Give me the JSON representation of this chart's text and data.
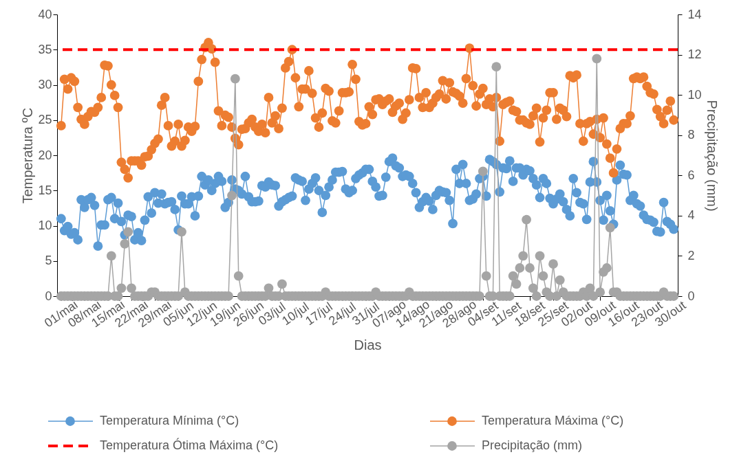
{
  "chart_data": {
    "type": "line",
    "xlabel": "Dias",
    "ylabel": "Temperatura ºC",
    "y2label": "Precipitação (mm)",
    "categories": [
      "01/mai",
      null,
      null,
      null,
      null,
      null,
      null,
      "08/mai",
      null,
      null,
      null,
      null,
      null,
      null,
      "15/mai",
      null,
      null,
      null,
      null,
      null,
      null,
      "22/mai",
      null,
      null,
      null,
      null,
      null,
      null,
      "29/mai",
      null,
      null,
      null,
      null,
      null,
      null,
      "05/jun",
      null,
      null,
      null,
      null,
      null,
      null,
      "12/jun",
      null,
      null,
      null,
      null,
      null,
      null,
      "19/jun",
      null,
      null,
      null,
      null,
      null,
      null,
      "26/jun",
      null,
      null,
      null,
      null,
      null,
      null,
      "03/jul",
      null,
      null,
      null,
      null,
      null,
      null,
      "10/jul",
      null,
      null,
      null,
      null,
      null,
      null,
      "17/jul",
      null,
      null,
      null,
      null,
      null,
      null,
      "24/jul",
      null,
      null,
      null,
      null,
      null,
      null,
      "31/jul",
      null,
      null,
      null,
      null,
      null,
      null,
      "07/ago",
      null,
      null,
      null,
      null,
      null,
      null,
      "14/ago",
      null,
      null,
      null,
      null,
      null,
      null,
      "21/ago",
      null,
      null,
      null,
      null,
      null,
      null,
      "28/ago",
      null,
      null,
      null,
      null,
      null,
      null,
      "04/set",
      null,
      null,
      null,
      null,
      null,
      null,
      "11/set",
      null,
      null,
      null,
      null,
      null,
      null,
      "18/set",
      null,
      null,
      null,
      null,
      null,
      null,
      "25/set",
      null,
      null,
      null,
      null,
      null,
      null,
      "02/out",
      null,
      null,
      null,
      null,
      null,
      null,
      "09/out",
      null,
      null,
      null,
      null,
      null,
      null,
      "16/out",
      null,
      null,
      null,
      null,
      null,
      null,
      "23/out",
      null,
      null,
      null,
      null,
      null,
      null,
      "30/out",
      null
    ],
    "series": [
      {
        "name": "Temperatura Mínima (°C)",
        "color": "#5b9bd5",
        "values": [
          11,
          9.3,
          9.9,
          8.8,
          9,
          8,
          13.7,
          12.6,
          13.7,
          14,
          12.9,
          7.1,
          10.1,
          10.1,
          13.7,
          14,
          11,
          13.2,
          10.6,
          8.7,
          11.5,
          11.3,
          8,
          9,
          7.9,
          10.8,
          14.1,
          11.8,
          14.7,
          13.2,
          14.5,
          13.1,
          13.3,
          13.4,
          12.3,
          9.4,
          14.2,
          13.1,
          13.1,
          14.1,
          11.4,
          14.2,
          17,
          15.8,
          16.5,
          15,
          16,
          17,
          16.3,
          12.6,
          13.3,
          16.5,
          15.2,
          15,
          14.5,
          17,
          14.1,
          13.4,
          13.4,
          13.5,
          15.7,
          15.5,
          16.2,
          15.8,
          15.7,
          12.8,
          13.4,
          13.7,
          14,
          14.2,
          16.8,
          16.5,
          16.3,
          13.6,
          15.2,
          16,
          16.8,
          15,
          11.9,
          14.3,
          15.5,
          16.5,
          17.6,
          17.6,
          17.7,
          15.2,
          14.7,
          15,
          16.7,
          17.2,
          17.5,
          18,
          18,
          16.3,
          15.5,
          14.2,
          14.3,
          16.9,
          19.1,
          19.6,
          18.5,
          18.2,
          17,
          17.2,
          17,
          16,
          14.7,
          12.6,
          13.4,
          14,
          13.5,
          12.3,
          14.3,
          15,
          14.8,
          14.7,
          13.6,
          10.3,
          18,
          16,
          18.7,
          16,
          13.6,
          13.8,
          14.5,
          16.7,
          17,
          14.2,
          19.4,
          19.1,
          18.7,
          14.8,
          18.2,
          18.1,
          19.2,
          16.3,
          18.2,
          18.2,
          17.2,
          18,
          17.8,
          16.7,
          15.8,
          14,
          16.7,
          16,
          13.9,
          13.1,
          13.8,
          14.5,
          13.4,
          12.3,
          11.4,
          16.7,
          14.7,
          13.3,
          13.1,
          10.9,
          16.2,
          19.1,
          16.2,
          13.6,
          10.8,
          14.3,
          12.1,
          10.2,
          16.5,
          18.6,
          17.3,
          17.2,
          13.6,
          14.3,
          13.1,
          12.8,
          11.5,
          10.9,
          10.8,
          10.5,
          9.2,
          9.1,
          13.3,
          10.6,
          10.2,
          9.5
        ]
      },
      {
        "name": "Temperatura Máxima (°C)",
        "color": "#ed7d31",
        "values": [
          24.2,
          30.8,
          29.4,
          31,
          30.5,
          26.8,
          25.1,
          24.4,
          25.5,
          26.2,
          26.1,
          26.8,
          28.2,
          32.8,
          32.7,
          30,
          28.5,
          26.8,
          19,
          18,
          16.8,
          19.2,
          19.2,
          19.2,
          18.6,
          19.8,
          19.9,
          20.8,
          21.7,
          22.3,
          27.1,
          28.2,
          24.2,
          21.3,
          22,
          24.4,
          21.3,
          22.1,
          24,
          23.4,
          24.1,
          30.5,
          33.6,
          35.3,
          36,
          35.1,
          33.2,
          26.3,
          24.2,
          25.7,
          25.4,
          24,
          22.4,
          21.5,
          23.7,
          23.8,
          24.6,
          25.1,
          24,
          23.4,
          24.4,
          23.2,
          28.2,
          24.6,
          25.6,
          23.8,
          26.7,
          32.4,
          33.3,
          35,
          31,
          26.9,
          29.4,
          29.4,
          32,
          28.8,
          25.3,
          24,
          26,
          29.5,
          29.1,
          24.9,
          24.6,
          26.3,
          28.9,
          28.9,
          29,
          32.9,
          30.8,
          24.8,
          24.3,
          24.5,
          26.9,
          25.8,
          27.9,
          28,
          27.2,
          27.7,
          28,
          26.1,
          27,
          27.4,
          25.1,
          26,
          27.9,
          32.4,
          32.3,
          28.2,
          26.8,
          28.9,
          26.8,
          27.4,
          28.2,
          28.7,
          30.6,
          28,
          30.3,
          29,
          28.8,
          28.4,
          27.4,
          30.9,
          35.2,
          29.9,
          27,
          28.7,
          29.5,
          27.2,
          28,
          26.9,
          28.2,
          22,
          27.2,
          27.5,
          27.7,
          26.4,
          26.2,
          25,
          25,
          24.6,
          24.4,
          25.6,
          26.7,
          21.9,
          25.3,
          26.4,
          28.9,
          28.9,
          25.1,
          26.7,
          26.4,
          25.5,
          31.3,
          31,
          31.4,
          24.5,
          22,
          24.5,
          24.8,
          23,
          25.1,
          22.5,
          25.3,
          21.6,
          19.6,
          17.5,
          20.9,
          23.8,
          24.5,
          24.5,
          25.6,
          30.9,
          31.1,
          30.9,
          31.1,
          29.8,
          28.9,
          28.7,
          26.5,
          25.5,
          24.5,
          26.4,
          27.7,
          25
        ]
      },
      {
        "name": "Precipitação  (mm)",
        "color": "#a5a5a5",
        "axis": "y2",
        "values": [
          0,
          0,
          0,
          0,
          0,
          0,
          0,
          0,
          0,
          0,
          0,
          0,
          0,
          0,
          0,
          2,
          0,
          0,
          0.4,
          2.6,
          3.2,
          0.4,
          0,
          0,
          0,
          0,
          0,
          0.2,
          0.2,
          0,
          0,
          0,
          0,
          0,
          0,
          0,
          3.2,
          0.2,
          0,
          0,
          0,
          0,
          0,
          0,
          0,
          0,
          0,
          0,
          0,
          0,
          0,
          5,
          10.8,
          1,
          0,
          0,
          0,
          0,
          0,
          0,
          0,
          0,
          0.4,
          0,
          0,
          0,
          0.6,
          0,
          0,
          0,
          0,
          0,
          0,
          0,
          0,
          0,
          0,
          0,
          0,
          0.2,
          0,
          0,
          0,
          0,
          0,
          0,
          0,
          0,
          0,
          0,
          0,
          0,
          0,
          0,
          0.2,
          0,
          0,
          0,
          0,
          0,
          0,
          0,
          0,
          0,
          0.2,
          0,
          0,
          0,
          0,
          0,
          0,
          0,
          0,
          0,
          0,
          0,
          0,
          0,
          0,
          0,
          0,
          0,
          0,
          0,
          0,
          0,
          6.2,
          1,
          0,
          0,
          11.4,
          0,
          0,
          0,
          0,
          1,
          0.6,
          1.4,
          2,
          3.8,
          1.4,
          0.4,
          0,
          2,
          1,
          0.2,
          0,
          1.6,
          0,
          0.8,
          0.2,
          0,
          0,
          0,
          0,
          0,
          0.2,
          0,
          0.4,
          0,
          11.8,
          0.2,
          1.2,
          1.4,
          3.4,
          0.2,
          0.2,
          0,
          0,
          0,
          0,
          0,
          0,
          0,
          0,
          0,
          0,
          0,
          0,
          0,
          0.2,
          0,
          0,
          0
        ]
      }
    ],
    "ref_lines": [
      {
        "axis": "y",
        "value": 35,
        "label": "Temperatura Ótima Máxima (°C)",
        "color": "#ff0000",
        "line_style": "dashed"
      }
    ],
    "ylim": [
      0,
      40
    ],
    "yticks": [
      0,
      5,
      10,
      15,
      20,
      25,
      30,
      35,
      40
    ],
    "y2lim": [
      0,
      14
    ],
    "y2ticks": [
      0,
      2,
      4,
      6,
      8,
      10,
      12,
      14
    ],
    "marker": "circle",
    "grid": false,
    "legend": "bottom"
  }
}
